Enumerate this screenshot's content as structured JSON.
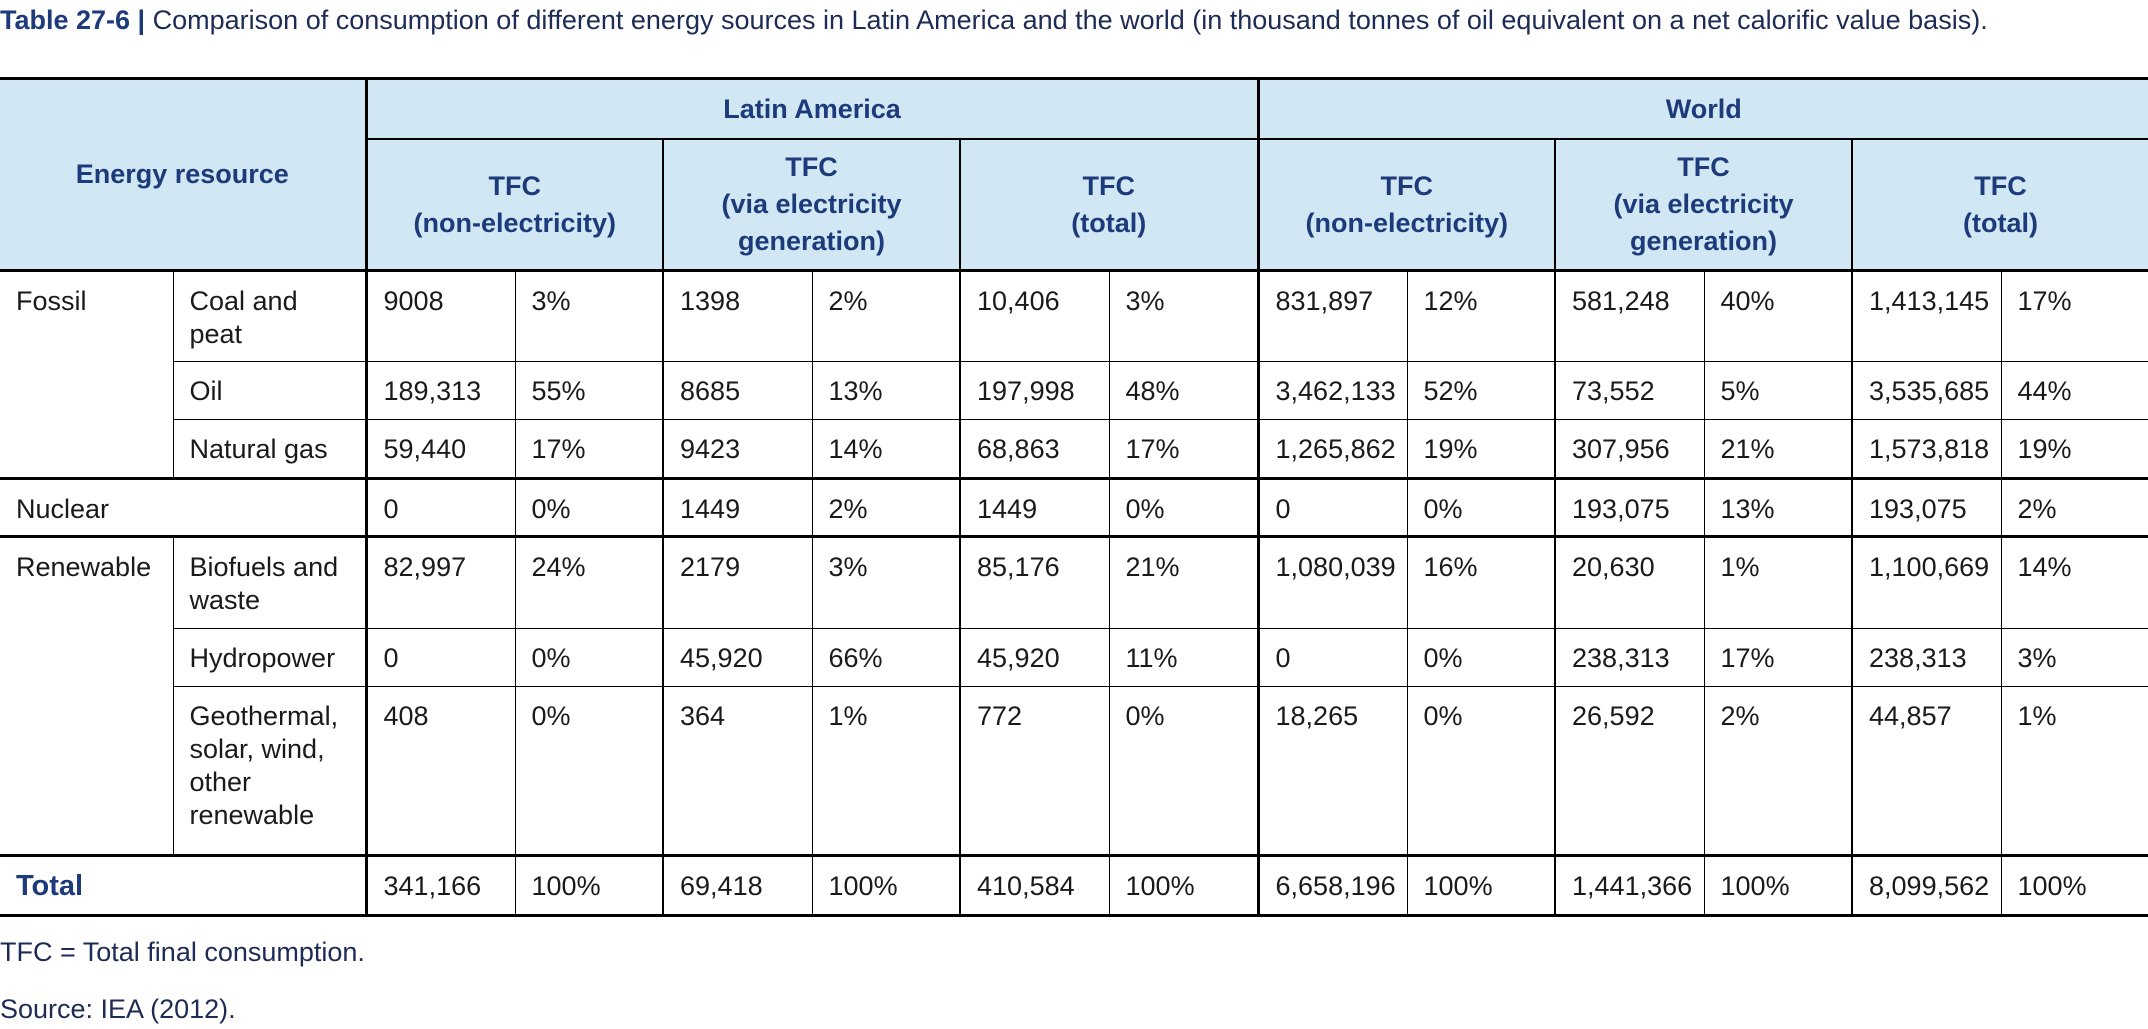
{
  "caption": {
    "label": "Table 27-6 |",
    "text": "Comparison of consumption of different energy sources in Latin America and the world (in thousand tonnes of oil equivalent on a net calorific value basis)."
  },
  "header": {
    "corner": "Energy resource",
    "regions": [
      "Latin America",
      "World"
    ],
    "subcols": [
      [
        "TFC",
        "(non-electricity)"
      ],
      [
        "TFC",
        "(via electricity",
        "generation)"
      ],
      [
        "TFC",
        "(total)"
      ]
    ]
  },
  "groups": {
    "fossil": "Fossil",
    "nuclear": "Nuclear",
    "renewable": "Renewable",
    "total": "Total"
  },
  "rows": {
    "coal": {
      "label": [
        "Coal and",
        "peat"
      ],
      "values": [
        "9008",
        "3%",
        "1398",
        "2%",
        "10,406",
        "3%",
        "831,897",
        "12%",
        "581,248",
        "40%",
        "1,413,145",
        "17%"
      ]
    },
    "oil": {
      "label": [
        "Oil"
      ],
      "values": [
        "189,313",
        "55%",
        "8685",
        "13%",
        "197,998",
        "48%",
        "3,462,133",
        "52%",
        "73,552",
        "5%",
        "3,535,685",
        "44%"
      ]
    },
    "gas": {
      "label": [
        "Natural gas"
      ],
      "values": [
        "59,440",
        "17%",
        "9423",
        "14%",
        "68,863",
        "17%",
        "1,265,862",
        "19%",
        "307,956",
        "21%",
        "1,573,818",
        "19%"
      ]
    },
    "nuclear": {
      "values": [
        "0",
        "0%",
        "1449",
        "2%",
        "1449",
        "0%",
        "0",
        "0%",
        "193,075",
        "13%",
        "193,075",
        "2%"
      ]
    },
    "biofuels": {
      "label": [
        "Biofuels and",
        "waste"
      ],
      "values": [
        "82,997",
        "24%",
        "2179",
        "3%",
        "85,176",
        "21%",
        "1,080,039",
        "16%",
        "20,630",
        "1%",
        "1,100,669",
        "14%"
      ]
    },
    "hydro": {
      "label": [
        "Hydropower"
      ],
      "values": [
        "0",
        "0%",
        "45,920",
        "66%",
        "45,920",
        "11%",
        "0",
        "0%",
        "238,313",
        "17%",
        "238,313",
        "3%"
      ]
    },
    "geo": {
      "label": [
        "Geothermal,",
        "solar, wind,",
        "other",
        "renewable"
      ],
      "values": [
        "408",
        "0%",
        "364",
        "1%",
        "772",
        "0%",
        "18,265",
        "0%",
        "26,592",
        "2%",
        "44,857",
        "1%"
      ]
    },
    "total": {
      "values": [
        "341,166",
        "100%",
        "69,418",
        "100%",
        "410,584",
        "100%",
        "6,658,196",
        "100%",
        "1,441,366",
        "100%",
        "8,099,562",
        "100%"
      ]
    }
  },
  "notes": {
    "abbrev": "TFC = Total final consumption.",
    "source": "Source: IEA (2012)."
  }
}
